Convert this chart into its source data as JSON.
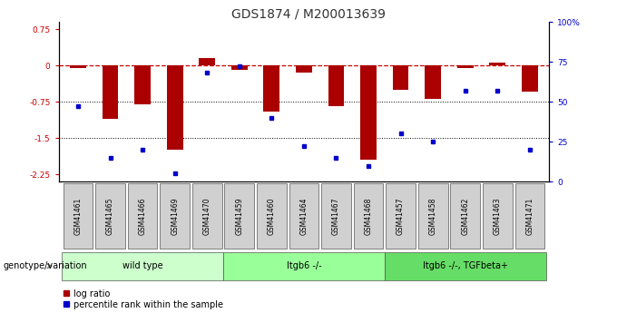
{
  "title": "GDS1874 / M200013639",
  "samples": [
    "GSM41461",
    "GSM41465",
    "GSM41466",
    "GSM41469",
    "GSM41470",
    "GSM41459",
    "GSM41460",
    "GSM41464",
    "GSM41467",
    "GSM41468",
    "GSM41457",
    "GSM41458",
    "GSM41462",
    "GSM41463",
    "GSM41471"
  ],
  "log_ratio": [
    -0.05,
    -1.1,
    -0.8,
    -1.75,
    0.15,
    -0.1,
    -0.95,
    -0.15,
    -0.85,
    -1.95,
    -0.5,
    -0.7,
    -0.05,
    0.05,
    -0.55
  ],
  "percentile": [
    47,
    15,
    20,
    5,
    68,
    72,
    40,
    22,
    15,
    10,
    30,
    25,
    57,
    57,
    20
  ],
  "groups": [
    {
      "label": "wild type",
      "start": 0,
      "end": 5,
      "color": "#ccffcc"
    },
    {
      "label": "Itgb6 -/-",
      "start": 5,
      "end": 10,
      "color": "#99ff99"
    },
    {
      "label": "Itgb6 -/-, TGFbeta+",
      "start": 10,
      "end": 15,
      "color": "#66dd66"
    }
  ],
  "ylim_left": [
    -2.4,
    0.9
  ],
  "ylim_right": [
    0,
    100
  ],
  "yticks_left": [
    0.75,
    0,
    -0.75,
    -1.5,
    -2.25
  ],
  "yticks_right": [
    100,
    75,
    50,
    25,
    0
  ],
  "bar_color": "#aa0000",
  "dot_color": "#0000cc",
  "ref_line_color": "#cc0000",
  "dotted_line_color": "#000000",
  "title_fontsize": 10,
  "tick_fontsize": 6.5,
  "sample_fontsize": 5.5,
  "group_fontsize": 7,
  "legend_fontsize": 7,
  "genotype_fontsize": 7
}
